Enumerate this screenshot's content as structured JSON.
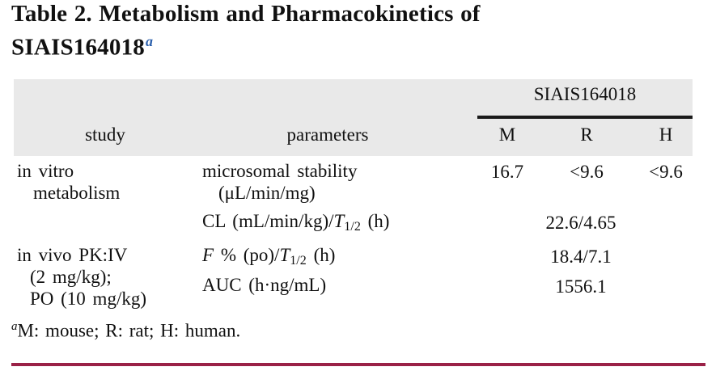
{
  "title": {
    "line1": "Table 2. Metabolism and Pharmacokinetics of",
    "line2": "SIAIS164018",
    "footnote_marker": "a"
  },
  "table": {
    "spanner_header": "SIAIS164018",
    "column_headers": {
      "study": "study",
      "parameters": "parameters",
      "m": "M",
      "r": "R",
      "h": "H"
    },
    "rows": [
      {
        "study_lines": [
          "in vitro",
          "metabolism"
        ],
        "param_lines": [
          [
            {
              "t": "microsomal stability"
            }
          ],
          [
            {
              "t": "(μL/min/mg)"
            }
          ]
        ],
        "values": {
          "m": "16.7",
          "r": "<9.6",
          "h": "<9.6"
        }
      },
      {
        "param_lines": [
          [
            {
              "t": "CL (mL/min/kg)/"
            },
            {
              "t": "T",
              "i": true
            },
            {
              "t": "1/2",
              "sub": true
            },
            {
              "t": " (h)"
            }
          ]
        ],
        "merged_value": "22.6/4.65"
      },
      {
        "study_lines": [
          "in vivo PK:IV",
          "(2 mg/kg);",
          "PO (10 mg/kg)"
        ],
        "param_lines": [
          [
            {
              "t": "F",
              "i": true
            },
            {
              "t": " % (po)/"
            },
            {
              "t": "T",
              "i": true
            },
            {
              "t": "1/2",
              "sub": true
            },
            {
              "t": " (h)"
            }
          ]
        ],
        "merged_value": "18.4/7.1"
      },
      {
        "param_lines": [
          [
            {
              "t": "AUC (h·ng/mL)"
            }
          ]
        ],
        "merged_value": "1556.1"
      }
    ]
  },
  "footnote": {
    "marker": "a",
    "text": "M: mouse; R: rat; H: human."
  },
  "colors": {
    "header_band_bg": "#e9e9e9",
    "spanner_rule": "#1a1a1a",
    "bottom_rule": "#9a2147",
    "footnote_marker_blue": "#2d61ad"
  }
}
